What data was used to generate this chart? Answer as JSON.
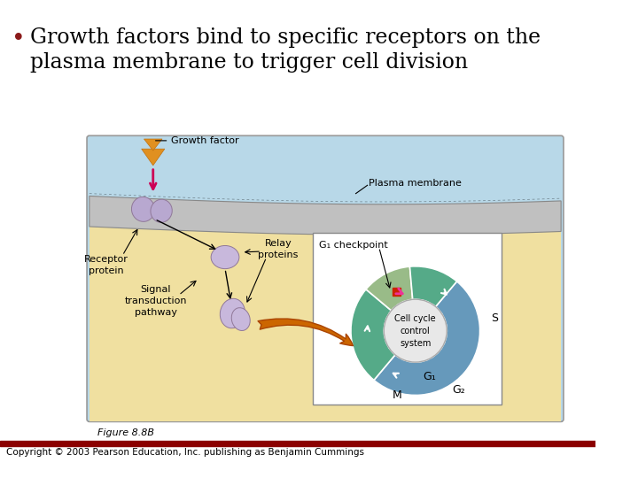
{
  "title_line1": "Growth factors bind to specific receptors on the",
  "title_line2": "plasma membrane to trigger cell division",
  "bullet_color": "#8B1A1A",
  "title_color": "#000000",
  "title_fontsize": 17,
  "bg_color": "#FFFFFF",
  "figure_caption": "Figure 8.8B",
  "copyright_text": "Copyright © 2003 Pearson Education, Inc. publishing as Benjamin Cummings",
  "copyright_bar_color": "#8B0000",
  "diagram_bg": "#B8D8E8",
  "cell_interior_color": "#F0E0A0",
  "membrane_color": "#B0B0B0",
  "labels": {
    "growth_factor": "Growth factor",
    "plasma_membrane": "Plasma membrane",
    "receptor_protein": "Receptor\nprotein",
    "signal_transduction": "Signal\ntransduction\npathway",
    "relay_proteins": "Relay\nproteins",
    "g1_checkpoint": "G₁ checkpoint",
    "cell_cycle_control": "Cell cycle\ncontrol\nsystem",
    "g1": "G₁",
    "s": "S",
    "g2": "G₂",
    "m": "M"
  }
}
